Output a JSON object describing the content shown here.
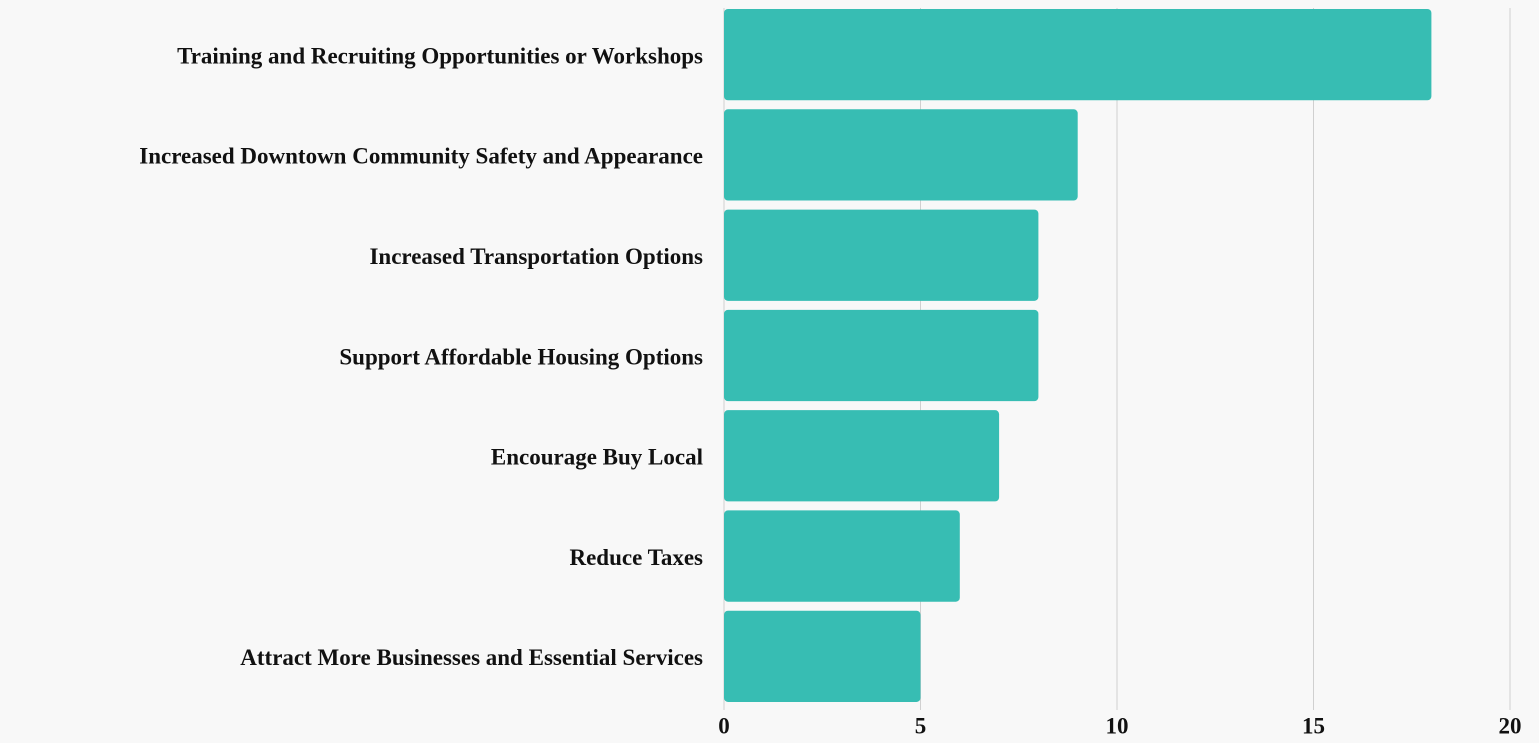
{
  "chart_data": {
    "type": "bar",
    "orientation": "horizontal",
    "categories": [
      "Training and Recruiting Opportunities or Workshops",
      "Increased Downtown Community Safety and Appearance",
      "Increased Transportation Options",
      "Support Affordable Housing Options",
      "Encourage Buy Local",
      "Reduce Taxes",
      "Attract More Businesses and Essential Services"
    ],
    "values": [
      18,
      9,
      8,
      8,
      7,
      6,
      5
    ],
    "color": "#37bdb3",
    "xlim": [
      0,
      20
    ],
    "xticks": [
      0,
      5,
      10,
      15,
      20
    ],
    "grid": true
  }
}
